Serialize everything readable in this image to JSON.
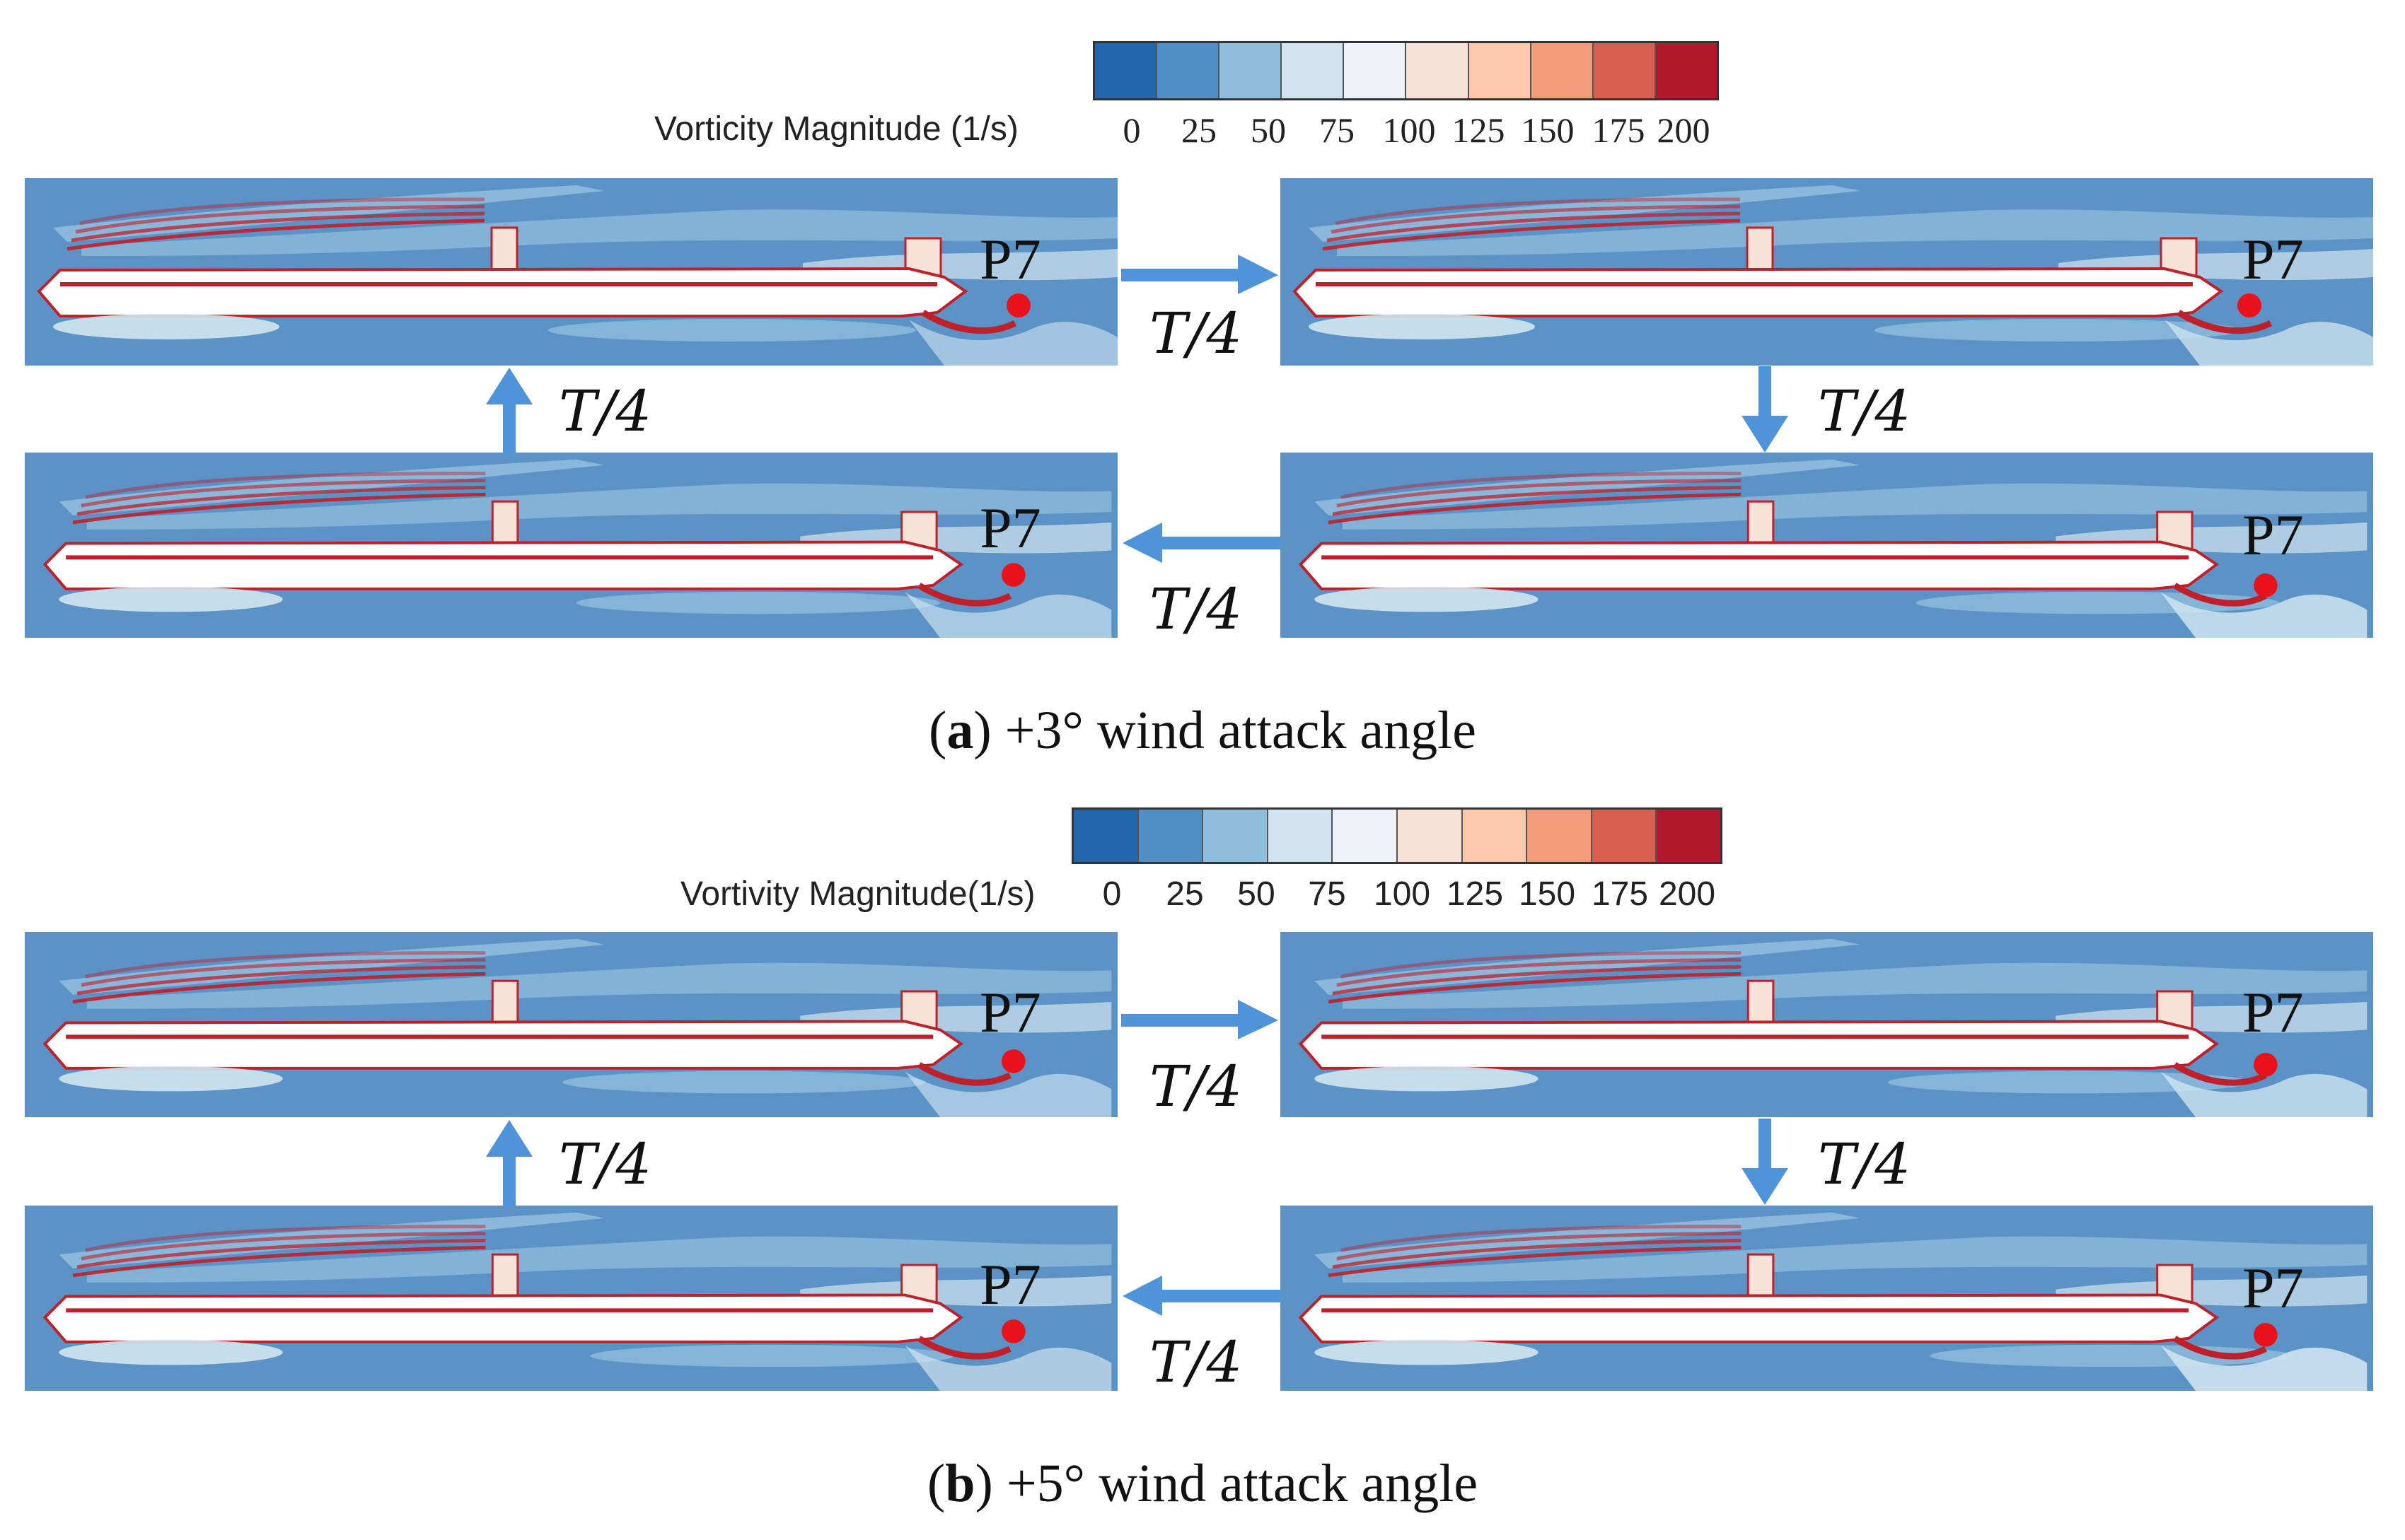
{
  "figure_a": {
    "colorbar": {
      "title": "Vorticity Magnitude (1/s)",
      "ticks": [
        "0",
        "25",
        "50",
        "75",
        "100",
        "125",
        "150",
        "175",
        "200"
      ],
      "colors": [
        "#2166ac",
        "#4f8fc5",
        "#8fbddc",
        "#d1e5f0",
        "#eef2f6",
        "#f7e2d8",
        "#fcc9ad",
        "#f29b7b",
        "#d6604d",
        "#b2182b"
      ]
    },
    "point_label": "P7",
    "step_label": "T/4",
    "caption_letter": "a",
    "caption_text": "+3° wind attack angle"
  },
  "figure_b": {
    "colorbar": {
      "title": "Vortivity Magnitude(1/s)",
      "ticks": [
        "0",
        "25",
        "50",
        "75",
        "100",
        "125",
        "150",
        "175",
        "200"
      ],
      "colors": [
        "#2166ac",
        "#4f8fc5",
        "#8fbddc",
        "#d1e5f0",
        "#eef2f6",
        "#f7e2d8",
        "#fcc9ad",
        "#f29b7b",
        "#d6604d",
        "#b2182b"
      ]
    },
    "point_label": "P7",
    "step_label": "T/4",
    "caption_letter": "b",
    "caption_text": "+5° wind attack angle"
  },
  "colors": {
    "field_background": "#5b93c6",
    "deck": "#ffffff",
    "shear_layer": "#c0202a",
    "arrow": "#4f93d8",
    "probe_point": "#e8121a"
  }
}
